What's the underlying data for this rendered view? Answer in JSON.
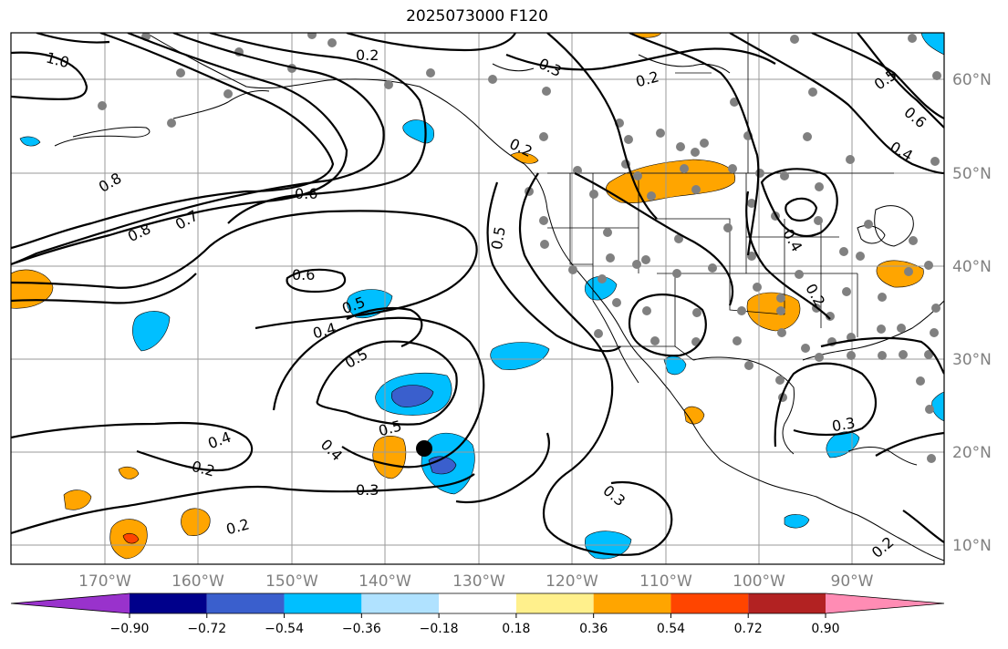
{
  "title": "2025073000 F120",
  "lon_labels": [
    "170°W",
    "160°W",
    "150°W",
    "140°W",
    "130°W",
    "120°W",
    "110°W",
    "100°W",
    "90°W"
  ],
  "lat_labels": [
    "60°N",
    "50°N",
    "40°N",
    "30°N",
    "20°N",
    "10°N"
  ],
  "contour_labels": [
    "1.0",
    "0.2",
    "0.3",
    "0.2",
    "0.5",
    "0.6",
    "0.4",
    "0.8",
    "0.7",
    "0.6",
    "0.8",
    "0.2",
    "0.5",
    "0.6",
    "0.5",
    "0.4",
    "0.4",
    "0.5",
    "0.5",
    "0.4",
    "0.4",
    "0.2",
    "0.2",
    "0.3",
    "0.2",
    "0.3",
    "0.3",
    "0.2"
  ],
  "colorbar": {
    "ticks": [
      "−0.90",
      "−0.72",
      "−0.54",
      "−0.36",
      "−0.18",
      "0.18",
      "0.36",
      "0.54",
      "0.72",
      "0.90"
    ],
    "colors": [
      "#9932cc",
      "#00008b",
      "#3a5fcd",
      "#00bfff",
      "#b0e2ff",
      "#ffffff",
      "#fff08c",
      "#ffa500",
      "#ff4500",
      "#b22222",
      "#ff8cb4"
    ]
  }
}
